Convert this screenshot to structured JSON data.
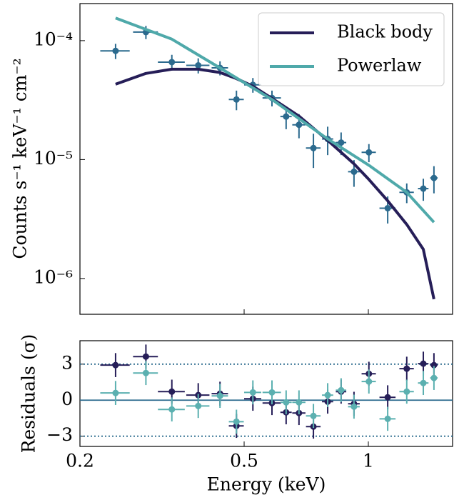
{
  "chart_data": [
    {
      "type": "errorbar",
      "ylabel": "Counts s⁻¹ keV⁻¹ cm⁻²",
      "log_x": true,
      "log_y": true,
      "xlim": [
        0.2,
        1.6
      ],
      "ylim": [
        5e-07,
        0.000205
      ],
      "yticks": [
        {
          "value": 0.0001,
          "label": "10⁻⁴"
        },
        {
          "value": 1e-05,
          "label": "10⁻⁵"
        },
        {
          "value": 1e-06,
          "label": "10⁻⁶"
        }
      ],
      "legend": "upper right",
      "data": {
        "color": "#2b6a8e",
        "x": [
          0.244,
          0.289,
          0.334,
          0.387,
          0.437,
          0.479,
          0.525,
          0.584,
          0.632,
          0.679,
          0.736,
          0.797,
          0.859,
          0.923,
          1.003,
          1.114,
          1.239,
          1.359,
          1.442
        ],
        "xerr": [
          0.02,
          0.02,
          0.025,
          0.025,
          0.02,
          0.02,
          0.025,
          0.03,
          0.02,
          0.025,
          0.03,
          0.025,
          0.025,
          0.03,
          0.04,
          0.05,
          0.05,
          0.04,
          0.03
        ],
        "values": [
          8.2e-05,
          0.000118,
          6.6e-05,
          6.2e-05,
          5.9e-05,
          3.2e-05,
          4.25e-05,
          3.3e-05,
          2.3e-05,
          1.96e-05,
          1.25e-05,
          1.49e-05,
          1.39e-05,
          7.9e-06,
          1.15e-05,
          3.9e-06,
          5.3e-06,
          5.7e-06,
          7e-06
        ],
        "yerr": [
          1.2e-05,
          1.5e-05,
          1e-05,
          9e-06,
          8e-06,
          6e-06,
          6e-06,
          5e-06,
          5e-06,
          4.5e-06,
          4e-06,
          4e-06,
          3e-06,
          2e-06,
          2e-06,
          1e-06,
          1e-06,
          1.2e-06,
          1.8e-06
        ]
      },
      "series": [
        {
          "name": "Black body",
          "color": "#261e58",
          "x": [
            0.244,
            0.289,
            0.334,
            0.387,
            0.437,
            0.479,
            0.525,
            0.584,
            0.679,
            0.797,
            0.923,
            1.003,
            1.114,
            1.239,
            1.359,
            1.442
          ],
          "values": [
            4.3e-05,
            5.3e-05,
            5.75e-05,
            5.75e-05,
            5.4e-05,
            4.8e-05,
            4.14e-05,
            3.27e-05,
            2.32e-05,
            1.45e-05,
            9.2e-06,
            6.8e-06,
            4.5e-06,
            2.85e-06,
            1.76e-06,
            6.7e-07
          ]
        },
        {
          "name": "Powerlaw",
          "color": "#4fa9aa",
          "x": [
            0.244,
            0.334,
            0.437,
            0.584,
            0.797,
            1.003,
            1.239,
            1.442
          ],
          "values": [
            0.000155,
            0.000103,
            5.9e-05,
            3.2e-05,
            1.49e-05,
            8.95e-06,
            5.3e-06,
            2.97e-06
          ]
        }
      ]
    },
    {
      "type": "errorbar",
      "xlabel": "Energy (keV)",
      "ylabel": "Residuals (σ)",
      "log_x": true,
      "log_y": false,
      "xlim": [
        0.2,
        1.6
      ],
      "ylim": [
        -3.85,
        4.95
      ],
      "xticks": [
        0.2,
        0.5,
        1
      ],
      "yticks": [
        3,
        0,
        {
          "value": -3,
          "label": "−3"
        }
      ],
      "hlines": [
        {
          "value": 3,
          "style": "dotted",
          "color": "#2b6a8e"
        },
        {
          "value": 0,
          "style": "solid",
          "color": "#2b6a8e"
        },
        {
          "value": -3,
          "style": "dotted",
          "color": "#2b6a8e"
        }
      ],
      "x": [
        0.244,
        0.289,
        0.334,
        0.387,
        0.437,
        0.479,
        0.525,
        0.584,
        0.632,
        0.679,
        0.736,
        0.797,
        0.859,
        0.923,
        1.003,
        1.114,
        1.239,
        1.359,
        1.442
      ],
      "xerr": [
        0.02,
        0.02,
        0.025,
        0.025,
        0.02,
        0.02,
        0.025,
        0.03,
        0.02,
        0.025,
        0.03,
        0.025,
        0.025,
        0.03,
        0.04,
        0.05,
        0.05,
        0.04,
        0.03
      ],
      "yerr": 1,
      "series": [
        {
          "color": "#261e58",
          "values": [
            2.92,
            3.63,
            0.71,
            0.42,
            0.54,
            -2.14,
            0.12,
            -0.24,
            -1.01,
            -1.07,
            -2.2,
            -0.12,
            0.71,
            -0.3,
            2.2,
            0.24,
            2.62,
            3.04,
            2.92
          ]
        },
        {
          "color": "#5bb0b0",
          "values": [
            0.6,
            2.26,
            -0.77,
            -0.48,
            0.36,
            -1.79,
            0.65,
            0.65,
            -0.18,
            -0.18,
            -1.31,
            0.42,
            0.83,
            -0.54,
            1.55,
            -1.55,
            0.71,
            1.43,
            1.85
          ]
        }
      ]
    }
  ]
}
